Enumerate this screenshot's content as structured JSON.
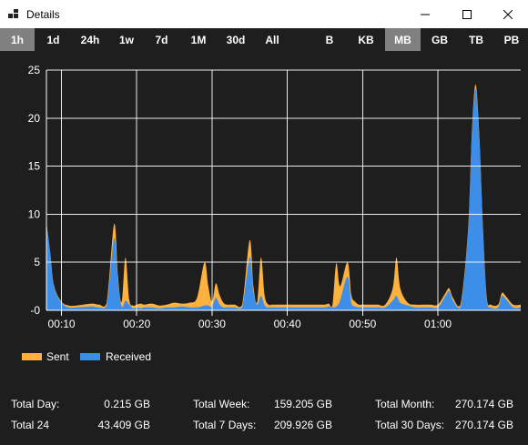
{
  "window": {
    "title": "Details",
    "app_icon": "network-grid-icon",
    "controls": [
      "minimize-icon",
      "maximize-icon",
      "close-icon"
    ]
  },
  "time_ranges": [
    {
      "label": "1h",
      "active": true
    },
    {
      "label": "1d",
      "active": false
    },
    {
      "label": "24h",
      "active": false
    },
    {
      "label": "1w",
      "active": false
    },
    {
      "label": "7d",
      "active": false
    },
    {
      "label": "1M",
      "active": false
    },
    {
      "label": "30d",
      "active": false
    },
    {
      "label": "All",
      "active": false
    }
  ],
  "units": [
    {
      "label": "B",
      "active": false
    },
    {
      "label": "KB",
      "active": false
    },
    {
      "label": "MB",
      "active": true
    },
    {
      "label": "GB",
      "active": false
    },
    {
      "label": "TB",
      "active": false
    },
    {
      "label": "PB",
      "active": false
    }
  ],
  "colors": {
    "sent": "#ffb13d",
    "received": "#3d8ee8",
    "active_button": "#808080",
    "background": "#1e1e1e",
    "grid": "#ffffff"
  },
  "chart_data": {
    "type": "area",
    "stacked": true,
    "title": "",
    "xlabel": "",
    "ylabel": "",
    "x_ticks": [
      "00:10",
      "00:20",
      "00:30",
      "00:40",
      "00:50",
      "01:00"
    ],
    "x_tick_minutes": [
      10,
      20,
      30,
      40,
      50,
      60
    ],
    "xlim_minutes": [
      8,
      71
    ],
    "y_ticks": [
      "25",
      "20",
      "15",
      "10",
      "5",
      "-0"
    ],
    "ylim": [
      0,
      25
    ],
    "grid": true,
    "legend_position": "bottom-left",
    "minutes": [
      8,
      8.5,
      9,
      10,
      11,
      12,
      14,
      15,
      16,
      17,
      17.5,
      18,
      18.5,
      19,
      19.5,
      20,
      20.5,
      21,
      22,
      23,
      24,
      25,
      26,
      27,
      28,
      29,
      29.5,
      30,
      30.5,
      31,
      31.5,
      32,
      33,
      34,
      35,
      35.5,
      36,
      36.5,
      37,
      37.5,
      38,
      39,
      40,
      41,
      42,
      43,
      44,
      45,
      45.5,
      46,
      46.5,
      47,
      48,
      48.5,
      49,
      49.5,
      50,
      51,
      52,
      53,
      54,
      54.5,
      55,
      56,
      57,
      58,
      59,
      60,
      61,
      61.5,
      62,
      63,
      64,
      64.5,
      65,
      65.5,
      66,
      66.5,
      67,
      68,
      68.5,
      69,
      70,
      71
    ],
    "series": [
      {
        "name": "Received",
        "values": [
          9.0,
          6.0,
          2.5,
          0.8,
          0.3,
          0.3,
          0.4,
          0.3,
          0.5,
          7.5,
          3.0,
          0.4,
          1.0,
          0.6,
          0.2,
          0.3,
          0.2,
          0.3,
          0.3,
          0.2,
          0.3,
          0.3,
          0.4,
          0.3,
          0.3,
          0.5,
          0.5,
          0.4,
          1.3,
          0.6,
          0.3,
          0.3,
          0.3,
          0.3,
          5.5,
          2.0,
          0.6,
          1.5,
          0.5,
          0.3,
          0.3,
          0.3,
          0.3,
          0.3,
          0.3,
          0.3,
          0.3,
          0.3,
          0.4,
          0.3,
          0.4,
          1.0,
          3.5,
          0.8,
          0.4,
          0.3,
          0.3,
          0.3,
          0.3,
          0.3,
          1.0,
          1.5,
          0.8,
          0.5,
          0.3,
          0.3,
          0.3,
          0.3,
          1.5,
          2.0,
          1.0,
          0.3,
          8.0,
          18.0,
          23.0,
          18.0,
          8.0,
          1.0,
          0.3,
          0.3,
          1.5,
          1.2,
          0.3,
          0.3
        ],
        "sent_values": [
          0.1,
          0.1,
          0.1,
          0.1,
          0.2,
          0.2,
          0.3,
          0.3,
          0.3,
          1.5,
          0.5,
          0.5,
          4.5,
          0.5,
          0.3,
          0.3,
          0.5,
          0.3,
          0.4,
          0.3,
          0.3,
          0.5,
          0.3,
          0.5,
          1.0,
          4.5,
          2.0,
          0.5,
          1.5,
          1.0,
          0.5,
          0.3,
          0.3,
          0.3,
          1.8,
          0.5,
          0.3,
          4.0,
          1.0,
          0.3,
          0.3,
          0.3,
          0.3,
          0.3,
          0.3,
          0.3,
          0.3,
          0.3,
          0.3,
          0.3,
          4.5,
          1.5,
          1.5,
          0.8,
          0.5,
          0.3,
          0.3,
          0.3,
          0.3,
          0.3,
          1.3,
          4.0,
          1.5,
          0.3,
          0.3,
          0.3,
          0.3,
          0.3,
          0.3,
          0.3,
          0.3,
          0.3,
          0.3,
          0.3,
          0.5,
          0.3,
          0.3,
          0.3,
          0.3,
          0.3,
          0.3,
          0.3,
          0.3,
          0.3
        ]
      },
      {
        "name": "Sent",
        "values": []
      }
    ]
  },
  "legend": [
    {
      "label": "Sent",
      "color": "#ffb13d"
    },
    {
      "label": "Received",
      "color": "#3d8ee8"
    }
  ],
  "stats": {
    "total_day_label": "Total Day:",
    "total_day_value": "0.215 GB",
    "total_24_label": "Total 24",
    "total_24_value": "43.409 GB",
    "total_week_label": "Total Week:",
    "total_week_value": "159.205 GB",
    "total_7days_label": "Total 7 Days:",
    "total_7days_value": "209.926 GB",
    "total_month_label": "Total Month:",
    "total_month_value": "270.174 GB",
    "total_30days_label": "Total 30 Days:",
    "total_30days_value": "270.174 GB"
  }
}
